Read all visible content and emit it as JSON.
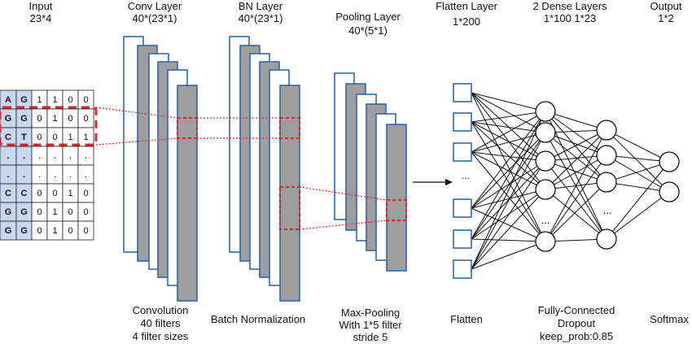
{
  "headers": {
    "input": {
      "title": "Input",
      "dims": "23*4"
    },
    "conv": {
      "title": "Conv Layer",
      "dims": "40*(23*1)"
    },
    "bn": {
      "title": "BN Layer",
      "dims": "40*(23*1)"
    },
    "pool": {
      "title": "Pooling Layer",
      "dims": "40*(5*1)"
    },
    "flatten": {
      "title": "Flatten Layer",
      "dims": "1*200"
    },
    "dense": {
      "title": "2 Dense Layers",
      "dims": "1*100 1*23"
    },
    "output": {
      "title": "Output",
      "dims": "1*2"
    }
  },
  "input_table": {
    "rows": [
      [
        "A",
        "G",
        "1",
        "1",
        "0",
        "0"
      ],
      [
        "G",
        "G",
        "0",
        "1",
        "0",
        "0"
      ],
      [
        "C",
        "T",
        "0",
        "0",
        "1",
        "1"
      ],
      [
        ".",
        ".",
        ".",
        ".",
        ".",
        "."
      ],
      [
        ".",
        ".",
        ".",
        ".",
        ".",
        "."
      ],
      [
        "C",
        "C",
        "0",
        "0",
        "1",
        "0"
      ],
      [
        "G",
        "G",
        "0",
        "1",
        "0",
        "0"
      ],
      [
        "G",
        "G",
        "0",
        "1",
        "0",
        "0"
      ]
    ]
  },
  "ellipsis": "...",
  "captions": {
    "conv": [
      "Convolution",
      "40 filters",
      "4 filter sizes"
    ],
    "bn": [
      "Batch Normalization"
    ],
    "pool": [
      "Max-Pooling",
      "With 1*5 filter",
      "stride 5"
    ],
    "flatten": [
      "Flatten"
    ],
    "dense": [
      "Fully-Connected",
      "Dropout",
      "keep_prob:0.85"
    ],
    "output": [
      "Softmax"
    ]
  },
  "colors": {
    "layer_border": "#2b5ea8",
    "filter_fill": "#9e9e9e",
    "input_header_fill": "#c9d7ee",
    "highlight": "#e02424"
  }
}
